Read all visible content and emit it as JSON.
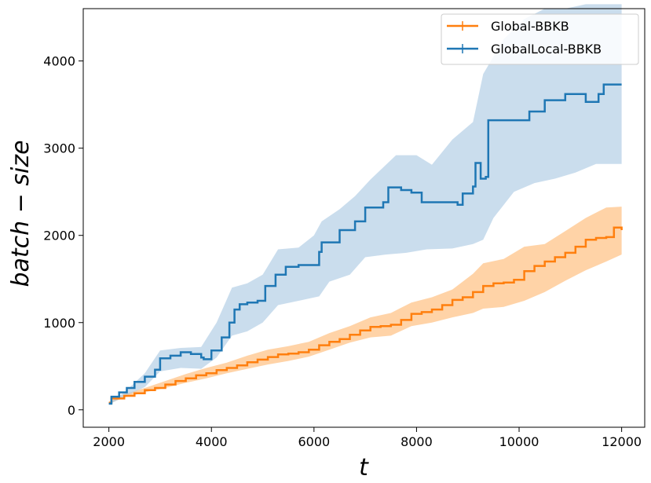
{
  "chart_data": {
    "type": "line",
    "title": "",
    "xlabel": "t",
    "ylabel": "batch − size",
    "xlim": [
      1500,
      12450
    ],
    "ylim": [
      -200,
      4600
    ],
    "xticks": [
      2000,
      4000,
      6000,
      8000,
      10000,
      12000
    ],
    "yticks": [
      0,
      1000,
      2000,
      3000,
      4000
    ],
    "xtick_labels": [
      "2000",
      "4000",
      "6000",
      "8000",
      "10000",
      "12000"
    ],
    "ytick_labels": [
      "0",
      "1000",
      "2000",
      "3000",
      "4000"
    ],
    "grid": false,
    "legend_position": "top-right",
    "series": [
      {
        "name": "Global-BBKB",
        "color": "#ff7f0e",
        "band_color": "#ffbb78",
        "points": [
          [
            2000,
            80
          ],
          [
            2050,
            130
          ],
          [
            2300,
            160
          ],
          [
            2500,
            190
          ],
          [
            2700,
            225
          ],
          [
            2900,
            250
          ],
          [
            3100,
            290
          ],
          [
            3300,
            330
          ],
          [
            3500,
            360
          ],
          [
            3700,
            395
          ],
          [
            3900,
            420
          ],
          [
            4100,
            455
          ],
          [
            4300,
            480
          ],
          [
            4500,
            510
          ],
          [
            4700,
            545
          ],
          [
            4900,
            575
          ],
          [
            5100,
            605
          ],
          [
            5300,
            635
          ],
          [
            5500,
            645
          ],
          [
            5700,
            660
          ],
          [
            5900,
            690
          ],
          [
            6100,
            740
          ],
          [
            6300,
            780
          ],
          [
            6500,
            810
          ],
          [
            6700,
            860
          ],
          [
            6900,
            910
          ],
          [
            7100,
            950
          ],
          [
            7300,
            960
          ],
          [
            7500,
            975
          ],
          [
            7700,
            1030
          ],
          [
            7900,
            1100
          ],
          [
            8100,
            1120
          ],
          [
            8300,
            1150
          ],
          [
            8500,
            1200
          ],
          [
            8700,
            1260
          ],
          [
            8900,
            1290
          ],
          [
            9100,
            1350
          ],
          [
            9300,
            1420
          ],
          [
            9500,
            1450
          ],
          [
            9700,
            1460
          ],
          [
            9900,
            1490
          ],
          [
            10100,
            1590
          ],
          [
            10300,
            1650
          ],
          [
            10500,
            1700
          ],
          [
            10700,
            1750
          ],
          [
            10900,
            1800
          ],
          [
            11100,
            1870
          ],
          [
            11300,
            1950
          ],
          [
            11500,
            1970
          ],
          [
            11700,
            1980
          ],
          [
            11850,
            2090
          ],
          [
            12000,
            2060
          ]
        ],
        "lower": [
          [
            2000,
            70
          ],
          [
            2300,
            140
          ],
          [
            2700,
            200
          ],
          [
            3100,
            250
          ],
          [
            3500,
            310
          ],
          [
            3900,
            360
          ],
          [
            4300,
            420
          ],
          [
            4700,
            470
          ],
          [
            5100,
            520
          ],
          [
            5500,
            560
          ],
          [
            5900,
            610
          ],
          [
            6300,
            690
          ],
          [
            6700,
            770
          ],
          [
            7100,
            830
          ],
          [
            7500,
            850
          ],
          [
            7900,
            960
          ],
          [
            8300,
            1000
          ],
          [
            8700,
            1060
          ],
          [
            9100,
            1110
          ],
          [
            9300,
            1160
          ],
          [
            9700,
            1180
          ],
          [
            10100,
            1250
          ],
          [
            10500,
            1350
          ],
          [
            10900,
            1480
          ],
          [
            11300,
            1600
          ],
          [
            11700,
            1700
          ],
          [
            12000,
            1780
          ]
        ],
        "upper": [
          [
            2000,
            90
          ],
          [
            2300,
            180
          ],
          [
            2700,
            250
          ],
          [
            3100,
            330
          ],
          [
            3500,
            410
          ],
          [
            3900,
            480
          ],
          [
            4300,
            540
          ],
          [
            4700,
            620
          ],
          [
            5100,
            690
          ],
          [
            5500,
            730
          ],
          [
            5900,
            780
          ],
          [
            6300,
            880
          ],
          [
            6700,
            960
          ],
          [
            7100,
            1060
          ],
          [
            7500,
            1110
          ],
          [
            7900,
            1230
          ],
          [
            8300,
            1290
          ],
          [
            8700,
            1380
          ],
          [
            9100,
            1560
          ],
          [
            9300,
            1680
          ],
          [
            9700,
            1730
          ],
          [
            10100,
            1870
          ],
          [
            10500,
            1900
          ],
          [
            10900,
            2050
          ],
          [
            11300,
            2200
          ],
          [
            11700,
            2320
          ],
          [
            12000,
            2330
          ]
        ]
      },
      {
        "name": "GlobalLocal-BBKB",
        "color": "#1f77b4",
        "band_color": "#aecbe3",
        "points": [
          [
            2000,
            70
          ],
          [
            2050,
            150
          ],
          [
            2200,
            200
          ],
          [
            2350,
            250
          ],
          [
            2500,
            320
          ],
          [
            2700,
            380
          ],
          [
            2900,
            460
          ],
          [
            3000,
            590
          ],
          [
            3200,
            620
          ],
          [
            3400,
            660
          ],
          [
            3600,
            640
          ],
          [
            3800,
            600
          ],
          [
            3850,
            580
          ],
          [
            4000,
            680
          ],
          [
            4200,
            830
          ],
          [
            4350,
            1000
          ],
          [
            4450,
            1150
          ],
          [
            4550,
            1210
          ],
          [
            4700,
            1230
          ],
          [
            4900,
            1250
          ],
          [
            5050,
            1420
          ],
          [
            5250,
            1550
          ],
          [
            5450,
            1640
          ],
          [
            5700,
            1660
          ],
          [
            6100,
            1810
          ],
          [
            6150,
            1920
          ],
          [
            6450,
            1920
          ],
          [
            6500,
            2060
          ],
          [
            6800,
            2160
          ],
          [
            7000,
            2320
          ],
          [
            7350,
            2380
          ],
          [
            7450,
            2550
          ],
          [
            7700,
            2520
          ],
          [
            7900,
            2490
          ],
          [
            8100,
            2380
          ],
          [
            8500,
            2380
          ],
          [
            8800,
            2350
          ],
          [
            8900,
            2480
          ],
          [
            9100,
            2560
          ],
          [
            9150,
            2830
          ],
          [
            9250,
            2650
          ],
          [
            9350,
            2670
          ],
          [
            9400,
            3320
          ],
          [
            9800,
            3320
          ],
          [
            10200,
            3420
          ],
          [
            10500,
            3550
          ],
          [
            10900,
            3620
          ],
          [
            11300,
            3530
          ],
          [
            11550,
            3620
          ],
          [
            11650,
            3730
          ],
          [
            12000,
            3730
          ]
        ],
        "lower": [
          [
            2000,
            60
          ],
          [
            2300,
            150
          ],
          [
            2700,
            260
          ],
          [
            3000,
            440
          ],
          [
            3400,
            480
          ],
          [
            3800,
            470
          ],
          [
            4100,
            600
          ],
          [
            4400,
            850
          ],
          [
            4700,
            900
          ],
          [
            5000,
            1000
          ],
          [
            5300,
            1200
          ],
          [
            5700,
            1250
          ],
          [
            6100,
            1300
          ],
          [
            6300,
            1470
          ],
          [
            6700,
            1550
          ],
          [
            7000,
            1750
          ],
          [
            7400,
            1780
          ],
          [
            7800,
            1800
          ],
          [
            8200,
            1840
          ],
          [
            8700,
            1850
          ],
          [
            9100,
            1900
          ],
          [
            9300,
            1950
          ],
          [
            9500,
            2200
          ],
          [
            9900,
            2500
          ],
          [
            10300,
            2600
          ],
          [
            10700,
            2650
          ],
          [
            11100,
            2720
          ],
          [
            11500,
            2820
          ],
          [
            12000,
            2820
          ]
        ],
        "upper": [
          [
            2000,
            80
          ],
          [
            2300,
            200
          ],
          [
            2700,
            420
          ],
          [
            3000,
            680
          ],
          [
            3400,
            710
          ],
          [
            3800,
            720
          ],
          [
            4100,
            1000
          ],
          [
            4400,
            1400
          ],
          [
            4700,
            1450
          ],
          [
            5000,
            1550
          ],
          [
            5300,
            1840
          ],
          [
            5700,
            1860
          ],
          [
            6000,
            2000
          ],
          [
            6150,
            2160
          ],
          [
            6500,
            2300
          ],
          [
            6800,
            2450
          ],
          [
            7100,
            2640
          ],
          [
            7600,
            2920
          ],
          [
            8000,
            2920
          ],
          [
            8300,
            2810
          ],
          [
            8700,
            3100
          ],
          [
            9100,
            3300
          ],
          [
            9300,
            3850
          ],
          [
            9700,
            4250
          ],
          [
            10100,
            4480
          ],
          [
            10500,
            4600
          ],
          [
            10900,
            4600
          ],
          [
            11300,
            4650
          ],
          [
            12000,
            4650
          ]
        ]
      }
    ]
  }
}
